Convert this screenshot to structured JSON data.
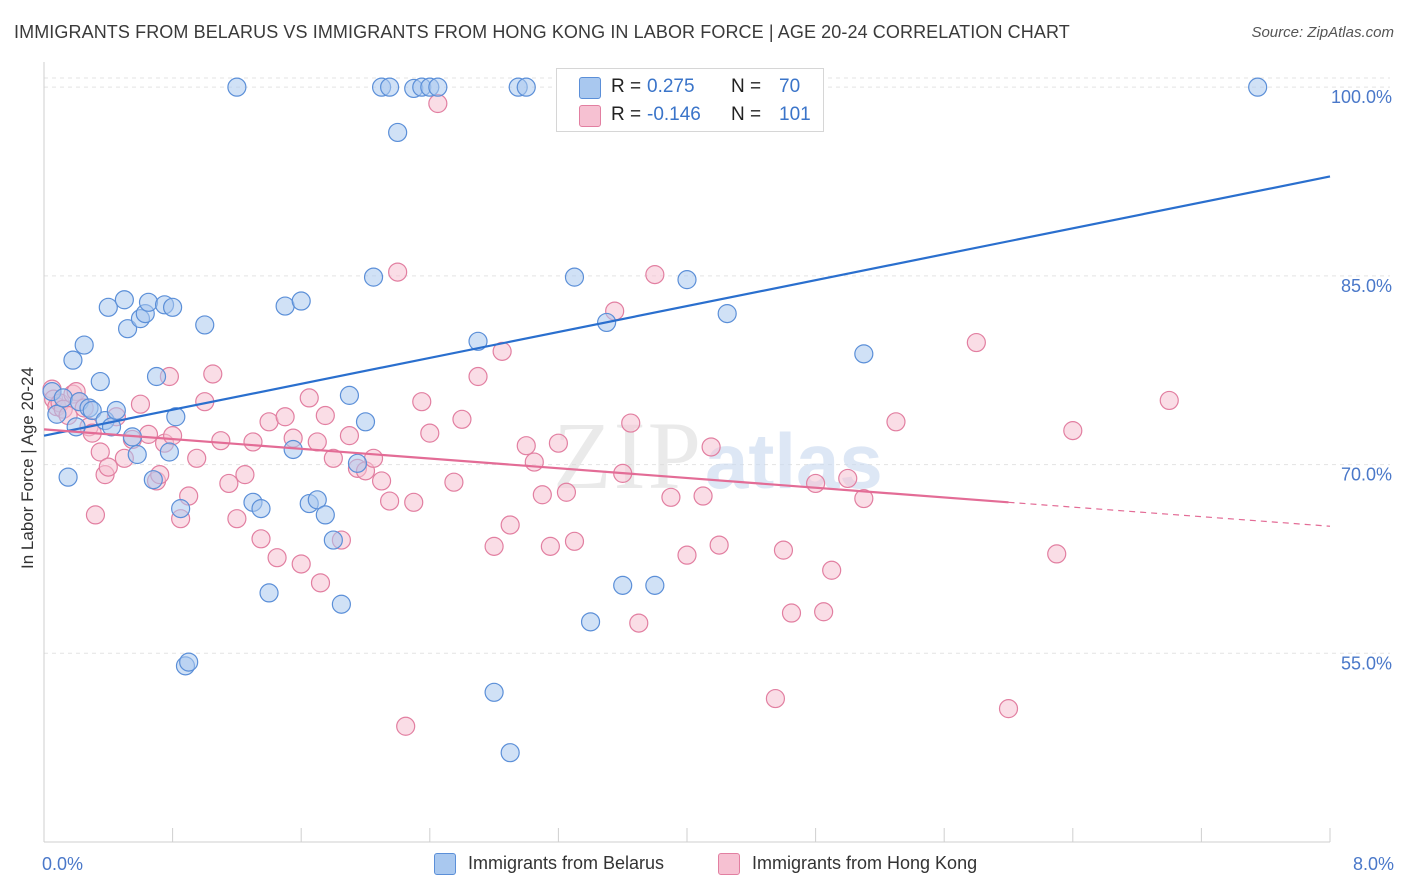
{
  "title": "IMMIGRANTS FROM BELARUS VS IMMIGRANTS FROM HONG KONG IN LABOR FORCE | AGE 20-24 CORRELATION CHART",
  "source": "Source: ZipAtlas.com",
  "watermark": "ZIPatlas",
  "colors": {
    "blue_fill": "#a9c8ef",
    "blue_stroke": "#5b8fd8",
    "blue_line": "#2a6fce",
    "pink_fill": "#f6c1d2",
    "pink_stroke": "#e27fa1",
    "pink_line": "#e36c96",
    "axis_text": "#4a78c9",
    "grid": "#e3e3e3"
  },
  "legend": {
    "rows": [
      {
        "r_label": "R =",
        "r_value": "0.275",
        "n_label": "N =",
        "n_value": "70"
      },
      {
        "r_label": "R =",
        "r_value": "-0.146",
        "n_label": "N =",
        "n_value": "101"
      }
    ]
  },
  "chart_data": {
    "type": "scatter",
    "xlabel": "",
    "ylabel": "In Labor Force | Age 20-24",
    "xlim": [
      0.0,
      8.0
    ],
    "ylim": [
      40.0,
      102.0
    ],
    "x_tick_labels": [
      "0.0%",
      "8.0%"
    ],
    "y_ticks": [
      55.0,
      70.0,
      85.0,
      100.0
    ],
    "y_tick_labels": [
      "55.0%",
      "70.0%",
      "85.0%",
      "100.0%"
    ],
    "grid": true,
    "legend_position": "top-center",
    "series": [
      {
        "name": "Immigrants from Belarus",
        "r": 0.275,
        "n": 70,
        "trend": {
          "x": [
            0.0,
            8.0
          ],
          "y": [
            72.3,
            92.9
          ]
        },
        "points": [
          [
            0.05,
            75.8
          ],
          [
            0.08,
            74.0
          ],
          [
            0.12,
            75.3
          ],
          [
            0.15,
            69.0
          ],
          [
            0.18,
            78.3
          ],
          [
            0.2,
            73.0
          ],
          [
            0.22,
            75.0
          ],
          [
            0.25,
            79.5
          ],
          [
            0.28,
            74.5
          ],
          [
            0.3,
            74.3
          ],
          [
            0.35,
            76.6
          ],
          [
            0.38,
            73.5
          ],
          [
            0.4,
            82.5
          ],
          [
            0.42,
            73.0
          ],
          [
            0.45,
            74.3
          ],
          [
            0.5,
            83.1
          ],
          [
            0.52,
            80.8
          ],
          [
            0.55,
            72.2
          ],
          [
            0.58,
            70.8
          ],
          [
            0.6,
            81.6
          ],
          [
            0.63,
            82.0
          ],
          [
            0.65,
            82.9
          ],
          [
            0.68,
            68.8
          ],
          [
            0.7,
            77.0
          ],
          [
            0.75,
            82.7
          ],
          [
            0.78,
            71.0
          ],
          [
            0.8,
            82.5
          ],
          [
            0.82,
            73.8
          ],
          [
            0.85,
            66.5
          ],
          [
            0.88,
            54.0
          ],
          [
            0.9,
            54.3
          ],
          [
            1.0,
            81.1
          ],
          [
            1.2,
            100.0
          ],
          [
            1.3,
            67.0
          ],
          [
            1.35,
            66.5
          ],
          [
            1.4,
            59.8
          ],
          [
            1.5,
            82.6
          ],
          [
            1.55,
            71.2
          ],
          [
            1.6,
            83.0
          ],
          [
            1.65,
            66.9
          ],
          [
            1.7,
            67.2
          ],
          [
            1.75,
            66.0
          ],
          [
            1.8,
            64.0
          ],
          [
            1.85,
            58.9
          ],
          [
            1.9,
            75.5
          ],
          [
            1.95,
            70.1
          ],
          [
            2.0,
            73.4
          ],
          [
            2.05,
            84.9
          ],
          [
            2.1,
            100.0
          ],
          [
            2.15,
            100.0
          ],
          [
            2.2,
            96.4
          ],
          [
            2.3,
            99.9
          ],
          [
            2.35,
            100.0
          ],
          [
            2.4,
            100.0
          ],
          [
            2.45,
            100.0
          ],
          [
            2.7,
            79.8
          ],
          [
            2.8,
            51.9
          ],
          [
            2.9,
            47.1
          ],
          [
            2.95,
            100.0
          ],
          [
            3.0,
            100.0
          ],
          [
            3.3,
            84.9
          ],
          [
            3.4,
            57.5
          ],
          [
            3.5,
            81.3
          ],
          [
            3.6,
            60.4
          ],
          [
            3.8,
            60.4
          ],
          [
            4.0,
            84.7
          ],
          [
            4.25,
            82.0
          ],
          [
            4.75,
            100.0
          ],
          [
            5.1,
            78.8
          ],
          [
            7.55,
            100.0
          ]
        ]
      },
      {
        "name": "Immigrants from Hong Kong",
        "r": -0.146,
        "n": 101,
        "trend": {
          "x": [
            0.0,
            6.0
          ],
          "y": [
            72.8,
            67.0
          ]
        },
        "trend_dashed": {
          "x": [
            6.0,
            8.0
          ],
          "y": [
            67.0,
            65.1
          ]
        },
        "points": [
          [
            0.05,
            76.0
          ],
          [
            0.06,
            75.2
          ],
          [
            0.08,
            74.6
          ],
          [
            0.1,
            74.9
          ],
          [
            0.12,
            74.4
          ],
          [
            0.15,
            73.9
          ],
          [
            0.18,
            75.6
          ],
          [
            0.2,
            75.8
          ],
          [
            0.22,
            75.0
          ],
          [
            0.25,
            74.5
          ],
          [
            0.28,
            73.0
          ],
          [
            0.3,
            72.5
          ],
          [
            0.32,
            66.0
          ],
          [
            0.35,
            71.0
          ],
          [
            0.38,
            69.2
          ],
          [
            0.4,
            69.8
          ],
          [
            0.45,
            73.8
          ],
          [
            0.5,
            70.5
          ],
          [
            0.55,
            72.0
          ],
          [
            0.6,
            74.8
          ],
          [
            0.65,
            72.4
          ],
          [
            0.7,
            68.7
          ],
          [
            0.72,
            69.2
          ],
          [
            0.75,
            71.7
          ],
          [
            0.78,
            77.0
          ],
          [
            0.8,
            72.3
          ],
          [
            0.85,
            65.7
          ],
          [
            0.9,
            67.5
          ],
          [
            0.95,
            70.5
          ],
          [
            1.0,
            75.0
          ],
          [
            1.05,
            77.2
          ],
          [
            1.1,
            71.9
          ],
          [
            1.15,
            68.5
          ],
          [
            1.2,
            65.7
          ],
          [
            1.25,
            69.2
          ],
          [
            1.3,
            71.8
          ],
          [
            1.35,
            64.1
          ],
          [
            1.4,
            73.4
          ],
          [
            1.45,
            62.6
          ],
          [
            1.5,
            73.8
          ],
          [
            1.55,
            72.1
          ],
          [
            1.6,
            62.1
          ],
          [
            1.65,
            75.3
          ],
          [
            1.7,
            71.8
          ],
          [
            1.72,
            60.6
          ],
          [
            1.75,
            73.9
          ],
          [
            1.8,
            70.5
          ],
          [
            1.85,
            64.0
          ],
          [
            1.9,
            72.3
          ],
          [
            1.95,
            69.7
          ],
          [
            2.0,
            69.5
          ],
          [
            2.05,
            70.5
          ],
          [
            2.1,
            68.7
          ],
          [
            2.15,
            67.1
          ],
          [
            2.2,
            85.3
          ],
          [
            2.25,
            49.2
          ],
          [
            2.3,
            67.0
          ],
          [
            2.35,
            75.0
          ],
          [
            2.4,
            72.5
          ],
          [
            2.45,
            98.7
          ],
          [
            2.55,
            68.6
          ],
          [
            2.6,
            73.6
          ],
          [
            2.7,
            77.0
          ],
          [
            2.8,
            63.5
          ],
          [
            2.85,
            79.0
          ],
          [
            2.9,
            65.2
          ],
          [
            3.0,
            71.5
          ],
          [
            3.05,
            70.2
          ],
          [
            3.1,
            67.6
          ],
          [
            3.15,
            63.5
          ],
          [
            3.2,
            71.7
          ],
          [
            3.25,
            67.8
          ],
          [
            3.3,
            63.9
          ],
          [
            3.5,
            100.0
          ],
          [
            3.55,
            82.2
          ],
          [
            3.6,
            69.3
          ],
          [
            3.65,
            73.3
          ],
          [
            3.7,
            57.4
          ],
          [
            3.8,
            85.1
          ],
          [
            3.9,
            67.4
          ],
          [
            4.0,
            62.8
          ],
          [
            4.1,
            67.5
          ],
          [
            4.15,
            71.4
          ],
          [
            4.2,
            63.6
          ],
          [
            4.4,
            100.0
          ],
          [
            4.5,
            100.0
          ],
          [
            4.55,
            51.4
          ],
          [
            4.6,
            63.2
          ],
          [
            4.65,
            58.2
          ],
          [
            4.75,
            100.0
          ],
          [
            4.8,
            68.5
          ],
          [
            4.85,
            58.3
          ],
          [
            4.9,
            61.6
          ],
          [
            5.0,
            68.9
          ],
          [
            5.1,
            67.3
          ],
          [
            5.3,
            73.4
          ],
          [
            5.8,
            79.7
          ],
          [
            6.0,
            50.6
          ],
          [
            6.3,
            62.9
          ],
          [
            6.4,
            72.7
          ],
          [
            7.0,
            75.1
          ]
        ]
      }
    ]
  },
  "bottom_legend": [
    {
      "label": "Immigrants from Belarus"
    },
    {
      "label": "Immigrants from Hong Kong"
    }
  ]
}
